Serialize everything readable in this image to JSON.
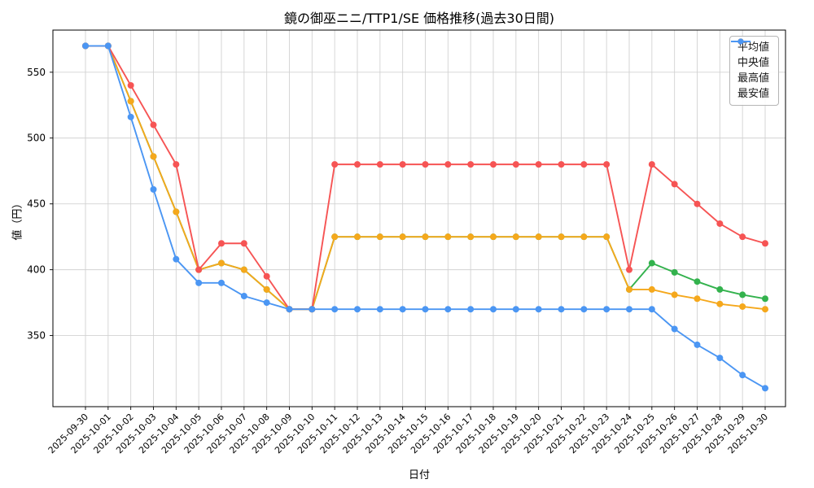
{
  "chart_data": {
    "type": "line",
    "title": "鏡の御巫ニニ/TTP1/SE 価格推移(過去30日間)",
    "xlabel": "日付",
    "ylabel": "値（円）",
    "grid": true,
    "legend_position": "upper right",
    "ylim": [
      296,
      582
    ],
    "yticks": [
      350,
      400,
      450,
      500,
      550
    ],
    "xtick_rotation": 45,
    "x": [
      "2025-09-30",
      "2025-10-01",
      "2025-10-02",
      "2025-10-03",
      "2025-10-04",
      "2025-10-05",
      "2025-10-06",
      "2025-10-07",
      "2025-10-08",
      "2025-10-09",
      "2025-10-10",
      "2025-10-11",
      "2025-10-12",
      "2025-10-13",
      "2025-10-14",
      "2025-10-15",
      "2025-10-16",
      "2025-10-17",
      "2025-10-18",
      "2025-10-19",
      "2025-10-20",
      "2025-10-21",
      "2025-10-22",
      "2025-10-23",
      "2025-10-24",
      "2025-10-25",
      "2025-10-26",
      "2025-10-27",
      "2025-10-28",
      "2025-10-29",
      "2025-10-30"
    ],
    "series": [
      {
        "name": "平均値",
        "color": "#33b24d",
        "values": [
          570,
          570,
          528,
          486,
          444,
          400,
          405,
          400,
          385,
          370,
          370,
          425,
          425,
          425,
          425,
          425,
          425,
          425,
          425,
          425,
          425,
          425,
          425,
          425,
          385,
          405,
          398,
          391,
          385,
          381,
          378
        ]
      },
      {
        "name": "中央値",
        "color": "#f5a81c",
        "values": [
          570,
          570,
          528,
          486,
          444,
          400,
          405,
          400,
          385,
          370,
          370,
          425,
          425,
          425,
          425,
          425,
          425,
          425,
          425,
          425,
          425,
          425,
          425,
          425,
          385,
          385,
          381,
          378,
          374,
          372,
          370
        ]
      },
      {
        "name": "最高値",
        "color": "#f65454",
        "values": [
          570,
          570,
          540,
          510,
          480,
          400,
          420,
          420,
          395,
          370,
          370,
          480,
          480,
          480,
          480,
          480,
          480,
          480,
          480,
          480,
          480,
          480,
          480,
          480,
          400,
          480,
          465,
          450,
          435,
          425,
          420
        ]
      },
      {
        "name": "最安値",
        "color": "#4b96f3",
        "values": [
          570,
          570,
          516,
          461,
          408,
          390,
          390,
          380,
          375,
          370,
          370,
          370,
          370,
          370,
          370,
          370,
          370,
          370,
          370,
          370,
          370,
          370,
          370,
          370,
          370,
          370,
          355,
          343,
          333,
          320,
          310
        ]
      }
    ]
  }
}
